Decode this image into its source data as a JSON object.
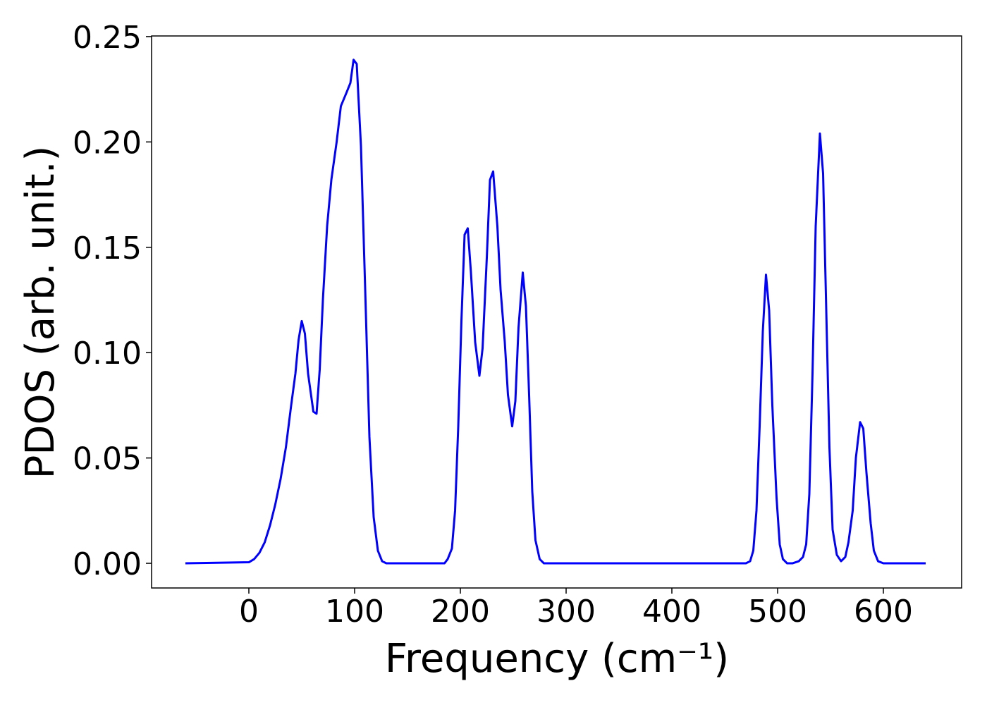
{
  "chart_data": {
    "type": "line",
    "xlabel": "Frequency (cm⁻¹)",
    "ylabel": "PDOS (arb. unit.)",
    "color": "#0000ff",
    "x": [
      -60,
      0,
      5,
      10,
      15,
      20,
      25,
      30,
      35,
      40,
      44,
      47,
      50,
      53,
      56,
      61,
      64,
      67,
      70,
      74,
      78,
      83,
      87,
      92,
      96,
      99,
      102,
      106,
      110,
      114,
      118,
      122,
      126,
      130,
      185,
      188,
      192,
      195,
      198,
      201,
      204,
      207,
      210,
      214,
      218,
      221,
      225,
      228,
      231,
      235,
      238,
      242,
      245,
      249,
      252,
      255,
      259,
      262,
      265,
      268,
      271,
      275,
      279,
      470,
      474,
      477,
      480,
      483,
      486,
      489,
      492,
      495,
      499,
      502,
      505,
      509,
      514,
      520,
      524,
      527,
      530,
      533,
      536,
      540,
      543,
      546,
      549,
      552,
      556,
      560,
      564,
      567,
      571,
      574,
      578,
      581,
      584,
      588,
      591,
      595,
      600,
      640
    ],
    "values": [
      0,
      0.0005,
      0.002,
      0.005,
      0.01,
      0.018,
      0.028,
      0.04,
      0.055,
      0.075,
      0.09,
      0.106,
      0.115,
      0.109,
      0.09,
      0.072,
      0.071,
      0.092,
      0.125,
      0.16,
      0.182,
      0.2,
      0.217,
      0.223,
      0.228,
      0.239,
      0.237,
      0.198,
      0.13,
      0.06,
      0.022,
      0.006,
      0.001,
      0,
      0,
      0.002,
      0.007,
      0.025,
      0.065,
      0.115,
      0.156,
      0.159,
      0.138,
      0.105,
      0.089,
      0.102,
      0.145,
      0.182,
      0.186,
      0.16,
      0.13,
      0.105,
      0.08,
      0.065,
      0.077,
      0.112,
      0.138,
      0.122,
      0.08,
      0.034,
      0.011,
      0.002,
      0,
      0,
      0.001,
      0.006,
      0.025,
      0.065,
      0.11,
      0.137,
      0.12,
      0.075,
      0.031,
      0.009,
      0.002,
      0,
      0,
      0.001,
      0.003,
      0.009,
      0.033,
      0.09,
      0.16,
      0.204,
      0.185,
      0.12,
      0.055,
      0.016,
      0.004,
      0.001,
      0.003,
      0.01,
      0.025,
      0.05,
      0.067,
      0.064,
      0.043,
      0.019,
      0.006,
      0.001,
      0,
      0
    ],
    "xlim": [
      -92,
      674
    ],
    "xticks": [
      0,
      100,
      200,
      300,
      400,
      500,
      600
    ],
    "ylim": [
      -0.0117,
      0.2503
    ],
    "yticks": [
      {
        "value": 0,
        "label": "0.00"
      },
      {
        "value": 0.05,
        "label": "0.05"
      },
      {
        "value": 0.1,
        "label": "0.10"
      },
      {
        "value": 0.15,
        "label": "0.15"
      },
      {
        "value": 0.2,
        "label": "0.20"
      },
      {
        "value": 0.25,
        "label": "0.25"
      }
    ]
  }
}
